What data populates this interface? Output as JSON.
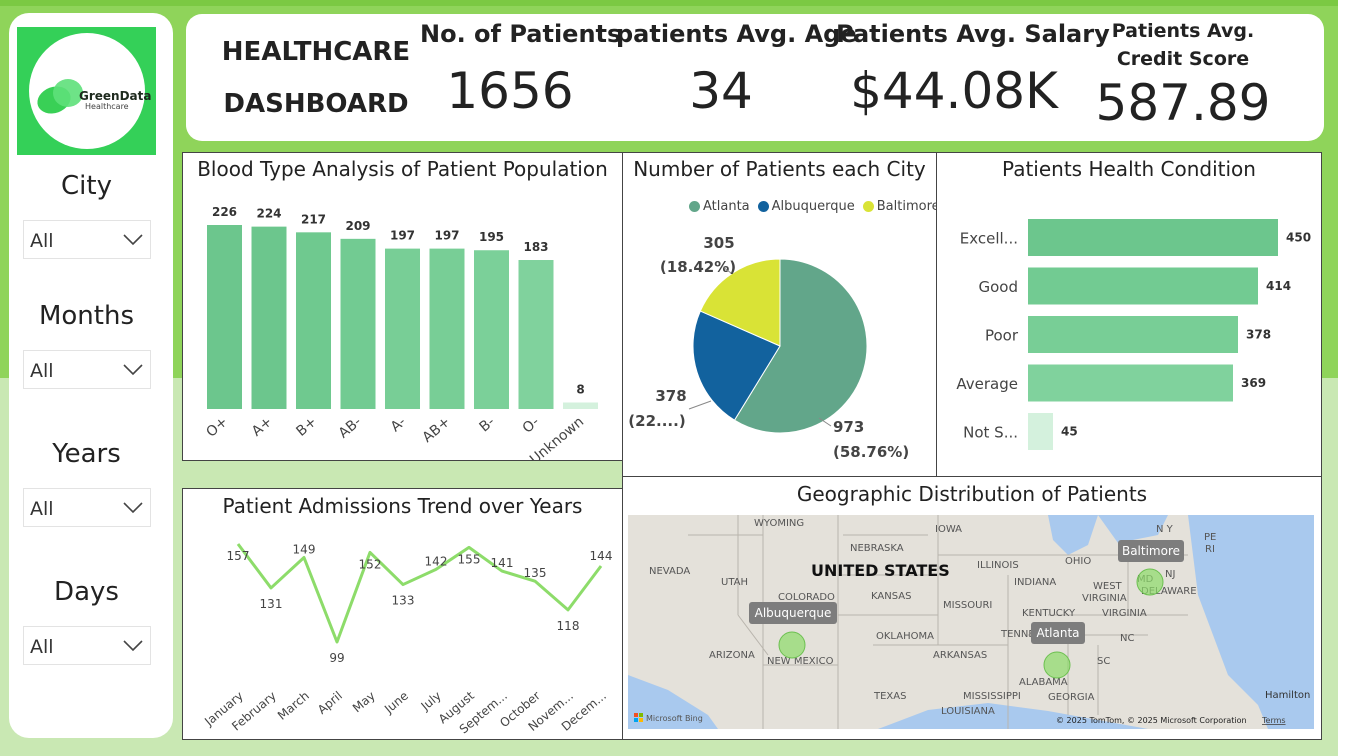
{
  "brand": {
    "name": "GreenData",
    "sub": "Healthcare"
  },
  "filters": [
    {
      "label": "City",
      "value": "All"
    },
    {
      "label": "Months",
      "value": "All"
    },
    {
      "label": "Years",
      "value": "All"
    },
    {
      "label": "Days",
      "value": "All"
    }
  ],
  "header": {
    "title_line1": "HEALTHCARE",
    "title_line2": "DASHBOARD",
    "kpis": [
      {
        "label": "No. of Patients",
        "value": "1656"
      },
      {
        "label": "patients Avg. Age",
        "value": "34"
      },
      {
        "label": "Patients Avg. Salary",
        "value": "$44.08K"
      },
      {
        "label": "Patients Avg. Credit Score",
        "value": "587.89"
      }
    ]
  },
  "panels": {
    "blood": "Blood Type Analysis of Patient Population",
    "city": "Number of Patients each City",
    "health": "Patients Health Condition",
    "trend": "Patient Admissions Trend over Years",
    "geo": "Geographic Distribution of Patients"
  },
  "chart_data": [
    {
      "type": "bar",
      "title": "Blood Type Analysis of Patient Population",
      "categories": [
        "O+",
        "A+",
        "B+",
        "AB-",
        "A-",
        "AB+",
        "B-",
        "O-",
        "Unknown"
      ],
      "values": [
        226,
        224,
        217,
        209,
        197,
        197,
        195,
        183,
        8
      ],
      "colors": [
        "#6cc68d",
        "#6cc68d",
        "#6fc98f",
        "#72cb92",
        "#78ce96",
        "#78ce96",
        "#7bd099",
        "#80d29d",
        "#d4f1dd"
      ]
    },
    {
      "type": "pie",
      "title": "Number of Patients each City",
      "legend": [
        "Atlanta",
        "Albuquerque",
        "Baltimore"
      ],
      "legend_position": "top-right",
      "slices": [
        {
          "name": "Atlanta",
          "value": 973,
          "label": "973",
          "pct": "(58.76%)",
          "color": "#62a68a"
        },
        {
          "name": "Albuquerque",
          "value": 378,
          "label": "378",
          "pct": "(22....)",
          "color": "#12629e"
        },
        {
          "name": "Baltimore",
          "value": 305,
          "label": "305",
          "pct": "(18.42%)",
          "color": "#d9e336"
        }
      ]
    },
    {
      "type": "bar",
      "orientation": "horizontal",
      "title": "Patients Health Condition",
      "categories": [
        "Excell...",
        "Good",
        "Poor",
        "Average",
        "Not S..."
      ],
      "values": [
        450,
        414,
        378,
        369,
        45
      ],
      "colors": [
        "#6cc68d",
        "#72cb92",
        "#78ce96",
        "#80d29d",
        "#d4f1dd"
      ]
    },
    {
      "type": "line",
      "title": "Patient Admissions Trend over Years",
      "categories": [
        "January",
        "February",
        "March",
        "April",
        "May",
        "June",
        "July",
        "August",
        "Septem...",
        "October",
        "Novem...",
        "Decem..."
      ],
      "values": [
        157,
        131,
        149,
        99,
        152,
        133,
        142,
        155,
        141,
        135,
        118,
        144
      ],
      "ylim": [
        99,
        157
      ],
      "color": "#8ddc6a"
    }
  ],
  "map": {
    "country": "UNITED STATES",
    "states": [
      "WYOMING",
      "IOWA",
      "NEBRASKA",
      "NEVADA",
      "UTAH",
      "ILLINOIS",
      "OHIO",
      "INDIANA",
      "COLORADO",
      "KANSAS",
      "MISSOURI",
      "WEST",
      "VIRGINIA",
      "VIRGINIA",
      "KENTUCKY",
      "TENNESSEE",
      "OKLAHOMA",
      "ARIZONA",
      "NEW MEXICO",
      "ARKANSAS",
      "NC",
      "SC",
      "ALABAMA",
      "MISSISSIPPI",
      "GEORGIA",
      "TEXAS",
      "LOUISIANA",
      "N Y",
      "PE",
      "RI",
      "NJ",
      "MD",
      "DELAWARE",
      "Hamilton"
    ],
    "markers": [
      "Baltimore",
      "Albuquerque",
      "Atlanta"
    ],
    "attribution": "© 2025 TomTom, © 2025 Microsoft Corporation",
    "terms": "Terms",
    "bing": "Microsoft Bing"
  }
}
